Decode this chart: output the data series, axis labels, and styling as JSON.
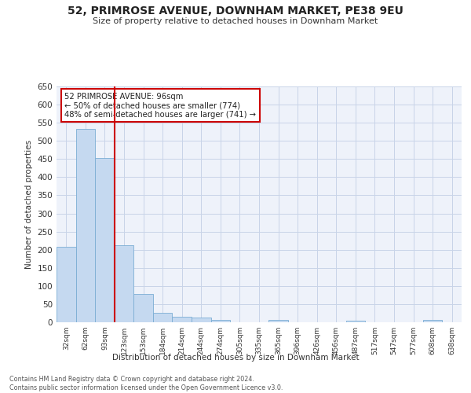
{
  "title_line1": "52, PRIMROSE AVENUE, DOWNHAM MARKET, PE38 9EU",
  "title_line2": "Size of property relative to detached houses in Downham Market",
  "xlabel": "Distribution of detached houses by size in Downham Market",
  "ylabel": "Number of detached properties",
  "categories": [
    "32sqm",
    "62sqm",
    "93sqm",
    "123sqm",
    "153sqm",
    "184sqm",
    "214sqm",
    "244sqm",
    "274sqm",
    "305sqm",
    "335sqm",
    "365sqm",
    "396sqm",
    "426sqm",
    "456sqm",
    "487sqm",
    "517sqm",
    "547sqm",
    "577sqm",
    "608sqm",
    "638sqm"
  ],
  "values": [
    208,
    533,
    452,
    213,
    77,
    26,
    16,
    12,
    7,
    0,
    0,
    6,
    0,
    0,
    0,
    5,
    0,
    0,
    0,
    6,
    0
  ],
  "bar_color": "#c5d9f0",
  "bar_edge_color": "#7badd4",
  "grid_color": "#c8d4e8",
  "vline_x": 2.5,
  "vline_color": "#cc0000",
  "annotation_text": "52 PRIMROSE AVENUE: 96sqm\n← 50% of detached houses are smaller (774)\n48% of semi-detached houses are larger (741) →",
  "annotation_box_color": "#ffffff",
  "annotation_box_edge_color": "#cc0000",
  "ylim": [
    0,
    650
  ],
  "yticks": [
    0,
    50,
    100,
    150,
    200,
    250,
    300,
    350,
    400,
    450,
    500,
    550,
    600,
    650
  ],
  "footer_text": "Contains HM Land Registry data © Crown copyright and database right 2024.\nContains public sector information licensed under the Open Government Licence v3.0.",
  "bg_color": "#ffffff",
  "plot_bg_color": "#eef2fa"
}
